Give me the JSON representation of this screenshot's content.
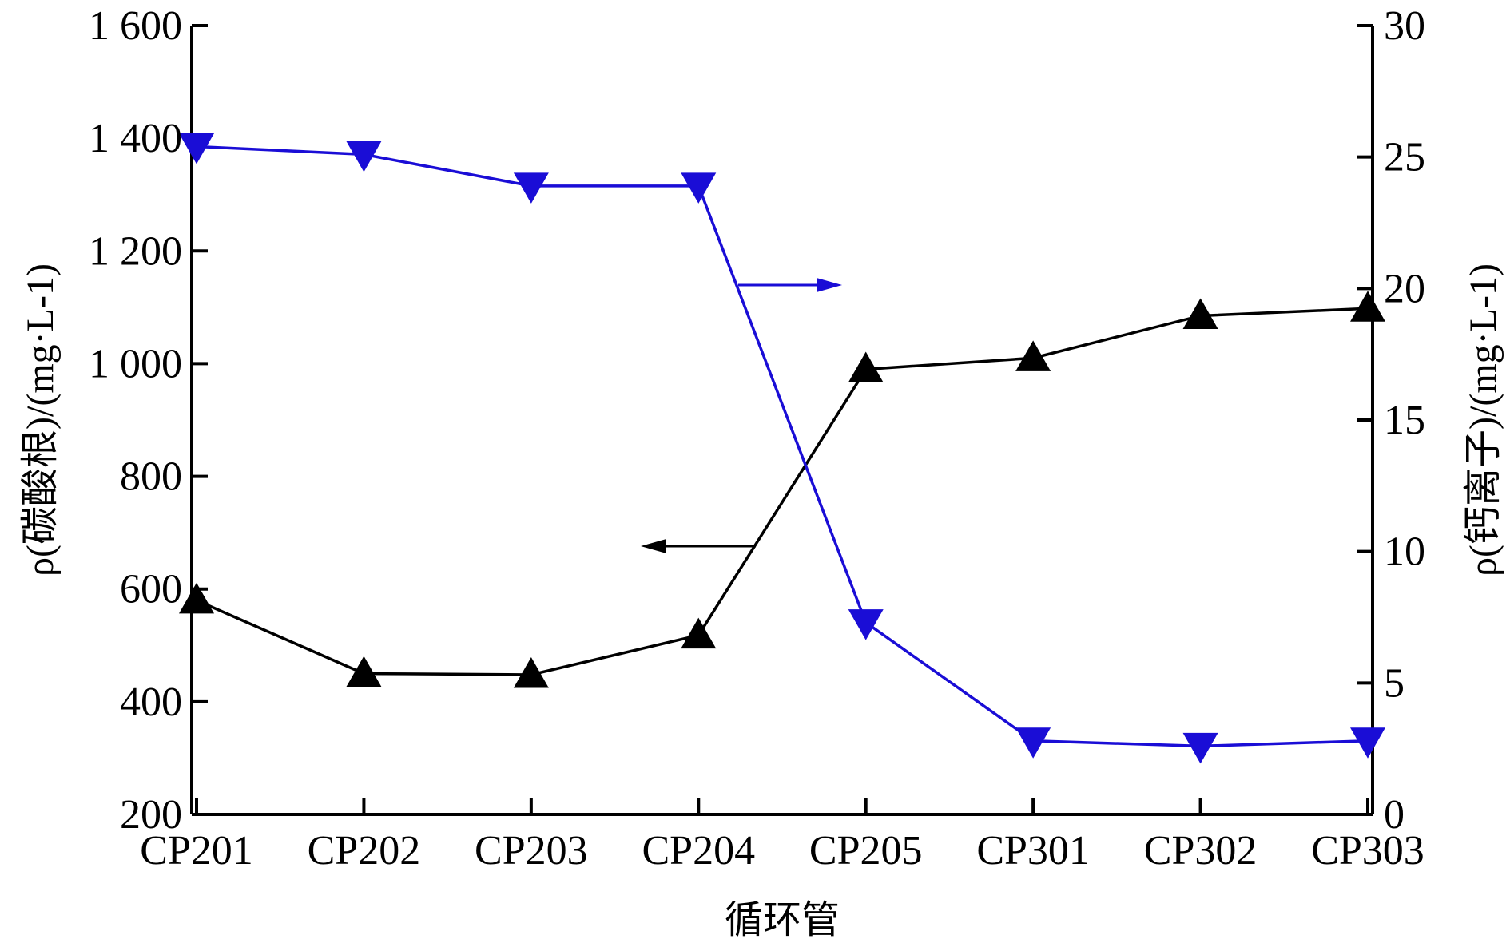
{
  "chart_data": {
    "type": "line",
    "categories": [
      "CP201",
      "CP202",
      "CP203",
      "CP204",
      "CP205",
      "CP301",
      "CP302",
      "CP303"
    ],
    "xlabel": "循环管",
    "ylabel_left": "ρ(碳酸根)/(mg·L-1)",
    "ylabel_right": "ρ(钙离子)/(mg·L-1)",
    "ylim_left": [
      200,
      1600
    ],
    "ylim_right": [
      0,
      30
    ],
    "yticks_left": [
      "200",
      "400",
      "600",
      "800",
      "1 000",
      "1 200",
      "1 400",
      "1 600"
    ],
    "yticks_right": [
      "0",
      "5",
      "10",
      "15",
      "20",
      "25",
      "30"
    ],
    "grid": false,
    "series": [
      {
        "axis": "left",
        "marker": "triangle-up",
        "color": "#000000",
        "values": [
          580,
          450,
          448,
          518,
          990,
          1010,
          1085,
          1098
        ]
      },
      {
        "axis": "right",
        "marker": "triangle-down",
        "color": "#1a0dd6",
        "values": [
          25.4,
          25.1,
          23.9,
          23.9,
          7.3,
          2.8,
          2.6,
          2.8
        ]
      }
    ],
    "annotations": [
      {
        "type": "arrow",
        "direction": "right",
        "points_to": "right-axis",
        "color": "#1a0dd6"
      },
      {
        "type": "arrow",
        "direction": "left",
        "points_to": "left-axis",
        "color": "#000000"
      }
    ]
  }
}
